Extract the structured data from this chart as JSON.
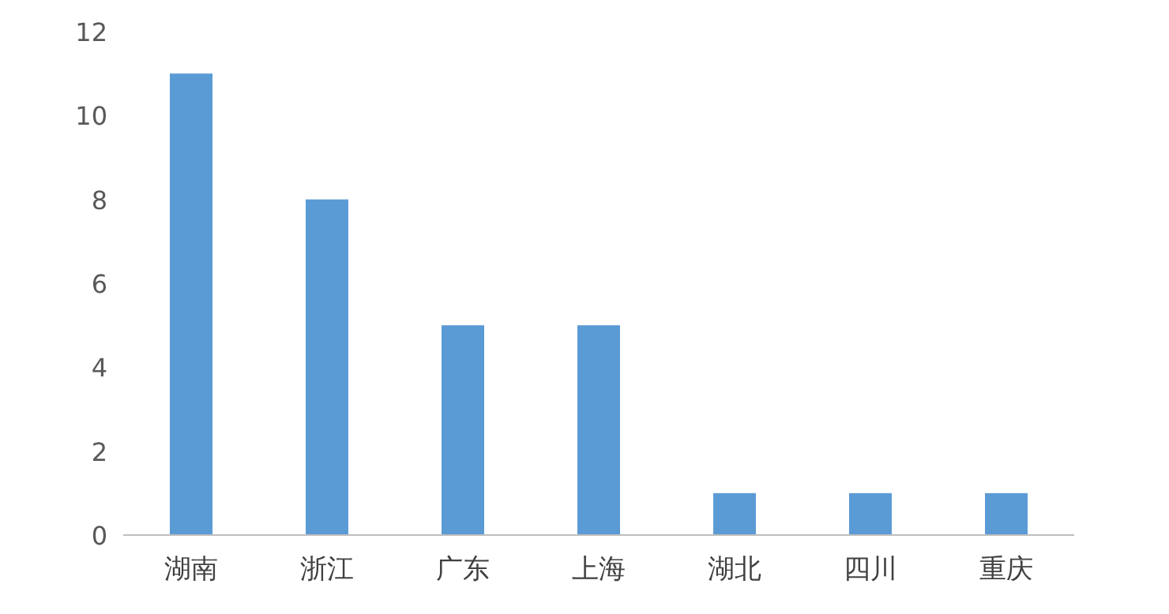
{
  "chart_data": {
    "type": "bar",
    "categories": [
      "湖南",
      "浙江",
      "广东",
      "上海",
      "湖北",
      "四川",
      "重庆"
    ],
    "values": [
      11,
      8,
      5,
      5,
      1,
      1,
      1
    ],
    "color": "#5b9bd5",
    "ylim": [
      0,
      12
    ],
    "yticks": [
      0,
      2,
      4,
      6,
      8,
      10,
      12
    ]
  }
}
